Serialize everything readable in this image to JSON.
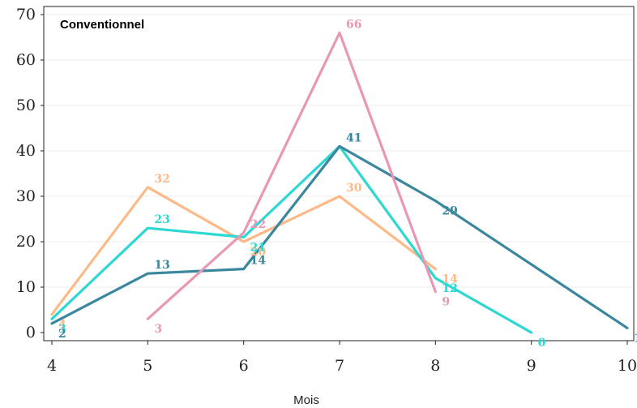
{
  "chart_data": {
    "type": "line",
    "annotation": "Conventionnel",
    "xlabel": "Mois",
    "ylabel": "",
    "xlim": [
      4,
      10
    ],
    "ylim": [
      0,
      70
    ],
    "x_ticks": [
      4,
      5,
      6,
      7,
      8,
      9,
      10
    ],
    "y_ticks": [
      0,
      10,
      20,
      30,
      40,
      50,
      60,
      70
    ],
    "grid": "horizontal",
    "series": [
      {
        "color": "#FDB987",
        "points": [
          [
            4,
            4
          ],
          [
            5,
            32
          ],
          [
            6,
            20
          ],
          [
            7,
            30
          ],
          [
            8,
            14
          ]
        ],
        "labels": [
          "4",
          "32",
          "20",
          "30",
          "14"
        ]
      },
      {
        "color": "#2ED8D2",
        "points": [
          [
            4,
            3
          ],
          [
            5,
            23
          ],
          [
            6,
            21
          ],
          [
            7,
            41
          ],
          [
            8,
            12
          ],
          [
            9,
            0
          ]
        ],
        "labels": [
          "3",
          "23",
          "21",
          "41",
          "12",
          "0"
        ]
      },
      {
        "color": "#3A879E",
        "points": [
          [
            4,
            2
          ],
          [
            5,
            13
          ],
          [
            6,
            14
          ],
          [
            7,
            41
          ],
          [
            8,
            29
          ],
          [
            10,
            1
          ]
        ],
        "labels": [
          "2",
          "13",
          "14",
          "41",
          "29",
          "1"
        ]
      },
      {
        "color": "#E898B5",
        "points": [
          [
            5,
            3
          ],
          [
            6,
            22
          ],
          [
            7,
            66
          ],
          [
            8,
            9
          ]
        ],
        "labels": [
          "3",
          "22",
          "66",
          "9"
        ]
      }
    ]
  }
}
